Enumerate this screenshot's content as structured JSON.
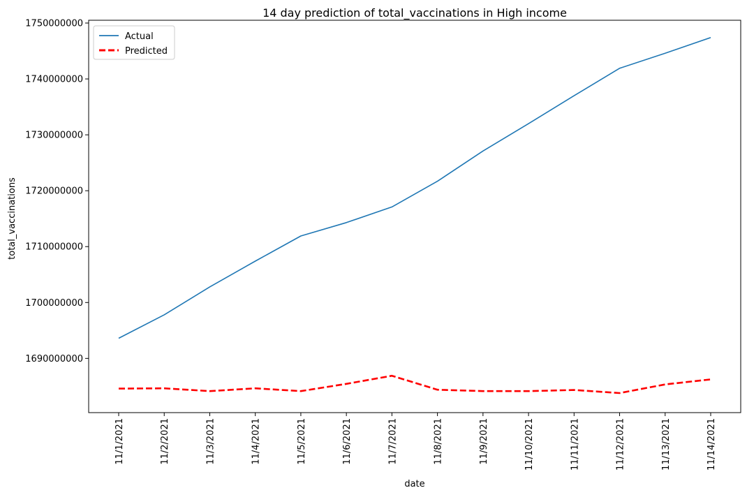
{
  "chart_data": {
    "type": "line",
    "title": "14 day prediction of total_vaccinations in High income",
    "xlabel": "date",
    "ylabel": "total_vaccinations",
    "categories": [
      "11/1/2021",
      "11/2/2021",
      "11/3/2021",
      "11/4/2021",
      "11/5/2021",
      "11/6/2021",
      "11/7/2021",
      "11/8/2021",
      "11/9/2021",
      "11/10/2021",
      "11/11/2021",
      "11/12/2021",
      "11/13/2021",
      "11/14/2021"
    ],
    "yticks": [
      "1690000000",
      "1700000000",
      "1710000000",
      "1720000000",
      "1730000000",
      "1740000000",
      "1750000000"
    ],
    "ylim": [
      1680300000,
      1750500000
    ],
    "grid": false,
    "legend_position": "upper-left",
    "series": [
      {
        "name": "Actual",
        "style": "solid",
        "color": "#1f77b4",
        "values": [
          1693600000,
          1697800000,
          1702800000,
          1707400000,
          1711900000,
          1714300000,
          1717100000,
          1721700000,
          1727100000,
          1732000000,
          1737000000,
          1741900000,
          1744600000,
          1747400000
        ]
      },
      {
        "name": "Predicted",
        "style": "dashed",
        "color": "#ff0000",
        "values": [
          1684600000,
          1684650000,
          1684150000,
          1684650000,
          1684150000,
          1685450000,
          1686900000,
          1684400000,
          1684150000,
          1684150000,
          1684350000,
          1683800000,
          1685350000,
          1686250000
        ]
      }
    ]
  }
}
